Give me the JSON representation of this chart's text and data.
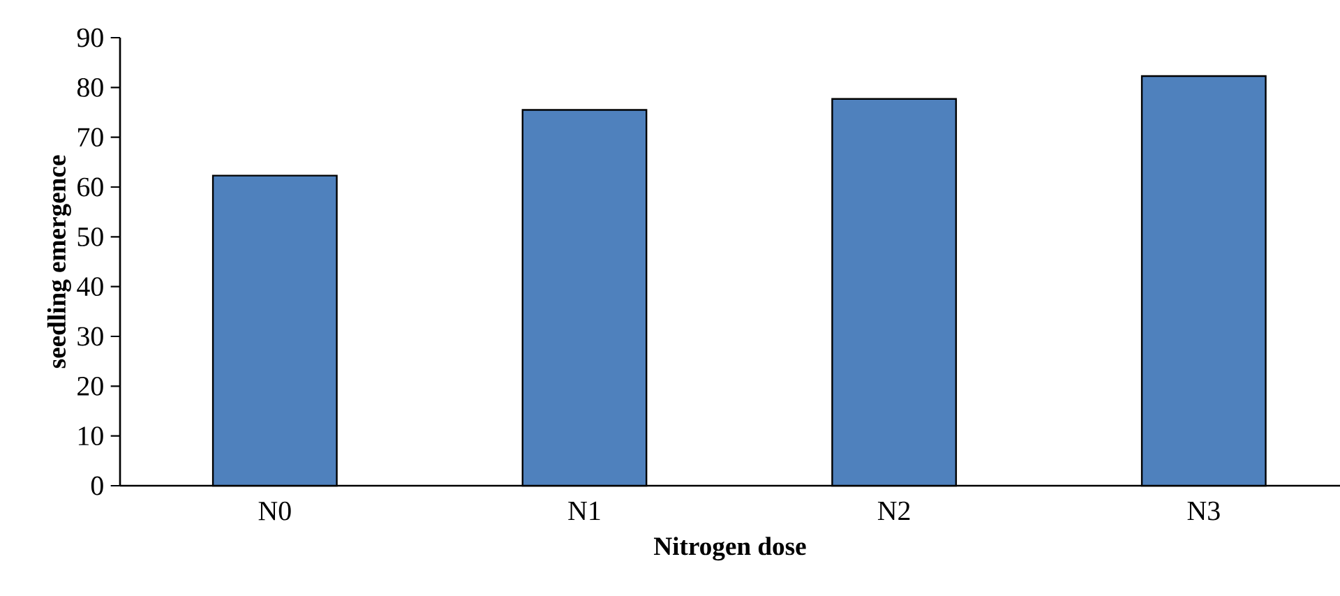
{
  "chart_data": {
    "type": "bar",
    "xlabel": "Nitrogen dose",
    "ylabel": "seedling emergence",
    "categories": [
      "N0",
      "N1",
      "N2",
      "N3"
    ],
    "values": [
      62.3,
      75.5,
      77.7,
      82.3
    ],
    "color": "#4f81bd",
    "ylim": [
      0,
      90
    ],
    "yticks": [
      0,
      10,
      20,
      30,
      40,
      50,
      60,
      70,
      80,
      90
    ],
    "grid": false
  }
}
